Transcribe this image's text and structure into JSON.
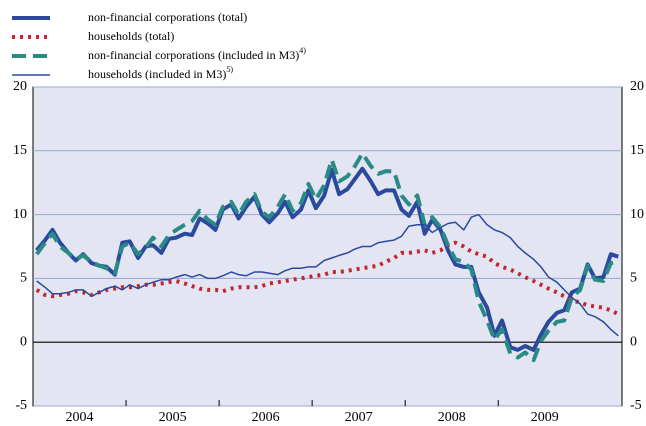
{
  "chart_data": {
    "type": "line",
    "xlim": [
      2004,
      2010.33
    ],
    "xticks": [
      {
        "value": 2004,
        "label": "2004"
      },
      {
        "value": 2005,
        "label": "2005"
      },
      {
        "value": 2006,
        "label": "2006"
      },
      {
        "value": 2007,
        "label": "2007"
      },
      {
        "value": 2008,
        "label": "2008"
      },
      {
        "value": 2009,
        "label": "2009"
      }
    ],
    "ylim": [
      -5,
      20
    ],
    "yticks": [
      -5,
      0,
      5,
      10,
      15,
      20
    ],
    "grid": true,
    "x": [
      2004.04,
      2004.13,
      2004.21,
      2004.29,
      2004.38,
      2004.46,
      2004.54,
      2004.63,
      2004.71,
      2004.79,
      2004.88,
      2004.96,
      2005.04,
      2005.13,
      2005.21,
      2005.29,
      2005.38,
      2005.46,
      2005.54,
      2005.63,
      2005.71,
      2005.79,
      2005.88,
      2005.96,
      2006.04,
      2006.13,
      2006.21,
      2006.29,
      2006.38,
      2006.46,
      2006.54,
      2006.63,
      2006.71,
      2006.79,
      2006.88,
      2006.96,
      2007.04,
      2007.13,
      2007.21,
      2007.29,
      2007.38,
      2007.46,
      2007.54,
      2007.63,
      2007.71,
      2007.79,
      2007.88,
      2007.96,
      2008.04,
      2008.13,
      2008.21,
      2008.29,
      2008.38,
      2008.46,
      2008.54,
      2008.63,
      2008.71,
      2008.79,
      2008.88,
      2008.96,
      2009.04,
      2009.13,
      2009.21,
      2009.29,
      2009.38,
      2009.46,
      2009.54,
      2009.63,
      2009.71,
      2009.79,
      2009.88,
      2009.96,
      2010.04,
      2010.13,
      2010.21,
      2010.29
    ],
    "series": [
      {
        "name": "non-financial corporations (total)",
        "color": "#2b4a9e",
        "width": 4,
        "dash": "solid",
        "values": [
          7.2,
          8.0,
          8.8,
          7.8,
          7.0,
          6.4,
          6.9,
          6.2,
          6.0,
          5.9,
          5.3,
          7.8,
          7.9,
          6.6,
          7.5,
          7.6,
          7.0,
          8.1,
          8.2,
          8.5,
          8.4,
          9.7,
          9.3,
          8.8,
          10.4,
          10.8,
          9.7,
          10.6,
          11.4,
          10.0,
          9.4,
          10.1,
          11.0,
          9.8,
          10.4,
          11.9,
          10.5,
          11.5,
          13.5,
          11.6,
          12.0,
          12.8,
          13.6,
          12.6,
          11.6,
          11.9,
          11.9,
          10.4,
          9.9,
          11.0,
          8.5,
          9.6,
          8.8,
          7.2,
          6.1,
          5.9,
          5.9,
          3.9,
          2.7,
          0.5,
          1.7,
          -0.4,
          -0.6,
          -0.3,
          -0.6,
          0.6,
          1.6,
          2.3,
          2.5,
          3.9,
          4.2,
          6.1,
          5.0,
          5.1,
          6.9,
          6.7
        ]
      },
      {
        "name": "households (total)",
        "color": "#c0282d",
        "width": 4,
        "dash": "dotted",
        "values": [
          4.1,
          3.7,
          3.6,
          3.7,
          3.8,
          4.0,
          3.9,
          3.7,
          3.9,
          4.1,
          4.2,
          4.3,
          4.3,
          4.4,
          4.5,
          4.5,
          4.6,
          4.7,
          4.8,
          4.6,
          4.4,
          4.2,
          4.1,
          4.1,
          4.0,
          4.2,
          4.3,
          4.3,
          4.3,
          4.4,
          4.6,
          4.7,
          4.8,
          4.9,
          5.0,
          5.1,
          5.2,
          5.3,
          5.5,
          5.5,
          5.6,
          5.7,
          5.8,
          5.9,
          6.0,
          6.3,
          6.6,
          7.0,
          7.0,
          7.1,
          7.2,
          7.0,
          7.2,
          7.6,
          7.8,
          7.5,
          7.1,
          6.9,
          6.7,
          6.2,
          5.9,
          5.7,
          5.4,
          5.1,
          4.8,
          4.5,
          4.2,
          3.9,
          3.6,
          3.3,
          3.1,
          2.9,
          2.8,
          2.7,
          2.5,
          2.2
        ]
      },
      {
        "name": "non-financial corporations (included in M3)",
        "note": "4)",
        "color": "#2a8a86",
        "width": 4,
        "dash": "dashed",
        "values": [
          6.9,
          7.8,
          8.5,
          7.5,
          7.0,
          6.5,
          6.8,
          6.3,
          6.0,
          5.8,
          5.4,
          7.5,
          7.8,
          6.9,
          7.4,
          8.2,
          7.5,
          8.4,
          8.8,
          9.2,
          9.5,
          10.3,
          9.6,
          9.2,
          10.6,
          11.0,
          10.0,
          11.0,
          11.6,
          10.2,
          9.8,
          10.6,
          11.6,
          10.3,
          10.9,
          12.4,
          11.2,
          12.3,
          14.3,
          12.6,
          13.0,
          13.8,
          14.8,
          13.8,
          13.2,
          13.4,
          13.4,
          11.5,
          10.8,
          11.5,
          9.2,
          9.8,
          9.0,
          7.6,
          6.5,
          6.3,
          5.7,
          3.2,
          1.7,
          0.2,
          1.0,
          -0.9,
          -1.2,
          -0.8,
          -1.4,
          0.1,
          0.9,
          1.6,
          1.7,
          3.5,
          4.1,
          6.0,
          4.9,
          4.8,
          6.2,
          6.3
        ]
      },
      {
        "name": "households (included in M3)",
        "note": "5)",
        "color": "#2b4a9e",
        "width": 1.5,
        "dash": "solid",
        "values": [
          4.8,
          4.3,
          3.8,
          3.8,
          3.9,
          4.1,
          4.1,
          3.6,
          3.9,
          4.2,
          4.4,
          4.1,
          4.5,
          4.2,
          4.5,
          4.7,
          4.9,
          4.9,
          5.1,
          5.3,
          5.1,
          5.3,
          5.0,
          5.0,
          5.2,
          5.5,
          5.3,
          5.2,
          5.5,
          5.5,
          5.4,
          5.3,
          5.6,
          5.8,
          5.8,
          5.9,
          5.9,
          6.4,
          6.6,
          6.8,
          7.0,
          7.3,
          7.5,
          7.5,
          7.8,
          7.9,
          8.0,
          8.3,
          9.1,
          9.2,
          9.2,
          8.6,
          9.0,
          9.3,
          9.4,
          8.8,
          9.8,
          10.0,
          9.2,
          8.8,
          8.6,
          8.2,
          7.5,
          7.0,
          6.5,
          5.9,
          5.1,
          4.7,
          4.1,
          3.5,
          3.0,
          2.2,
          2.0,
          1.6,
          1.0,
          0.5
        ]
      }
    ]
  }
}
